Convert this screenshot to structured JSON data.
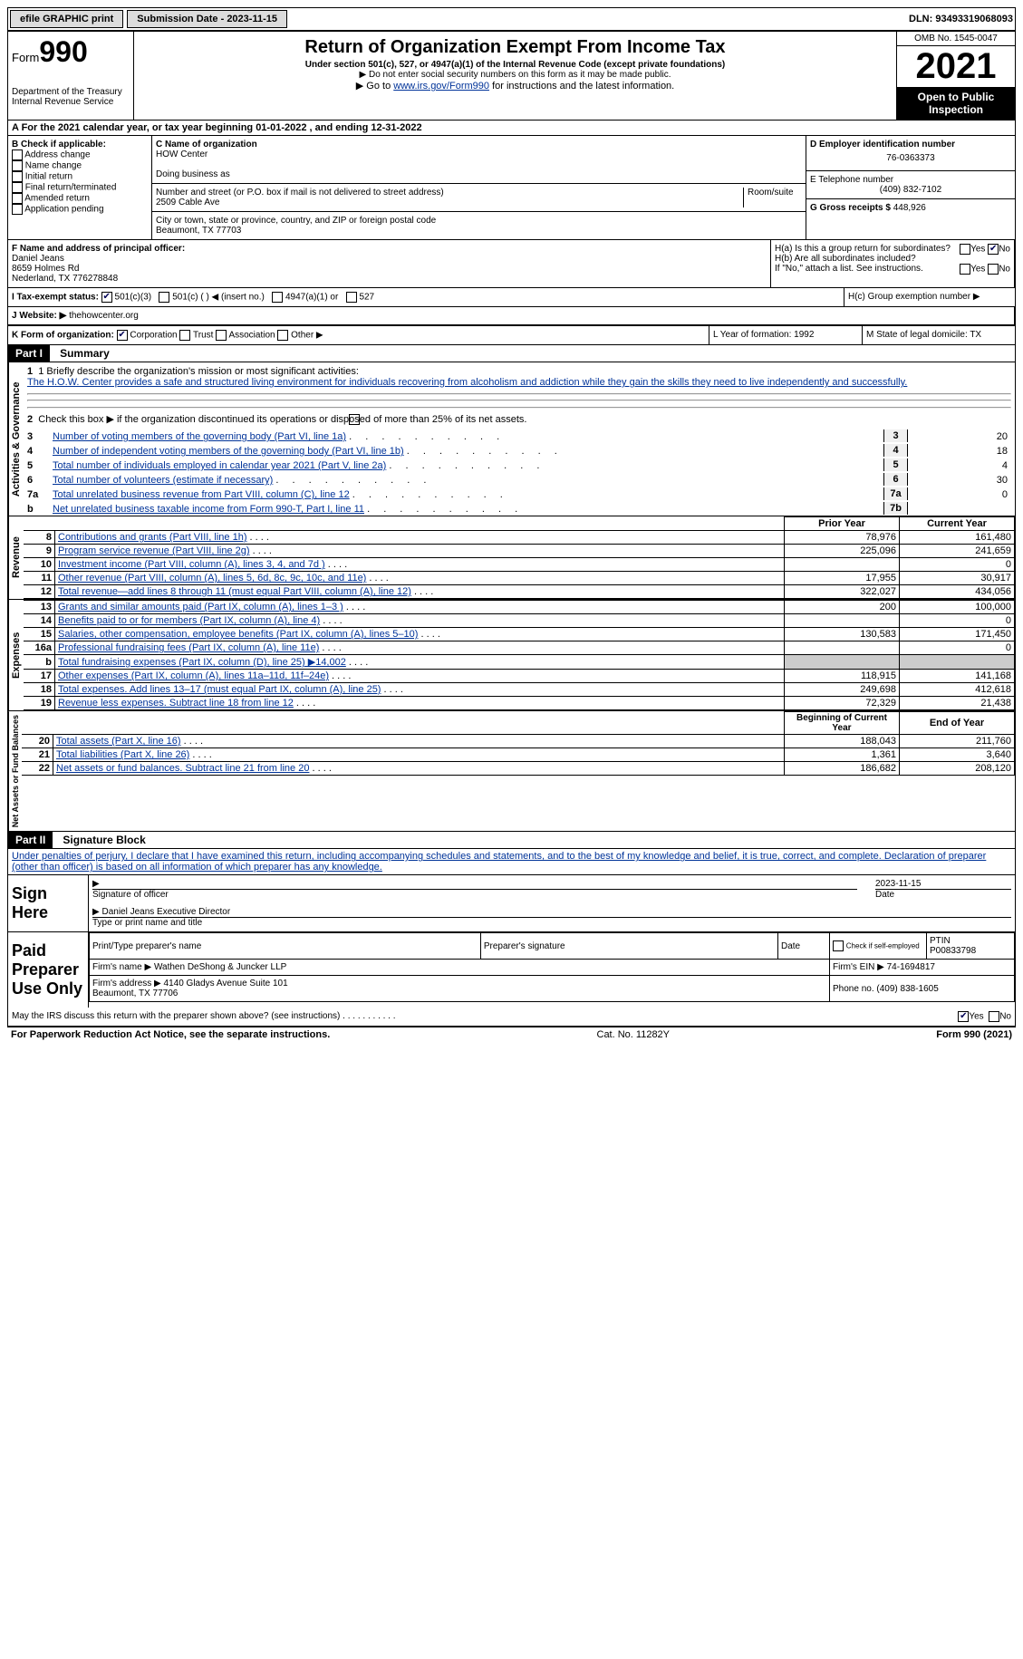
{
  "header": {
    "efile": "efile GRAPHIC print",
    "submission": "Submission Date - 2023-11-15",
    "dln": "DLN: 93493319068093"
  },
  "form": {
    "form_label": "Form",
    "form_number": "990",
    "dept": "Department of the Treasury Internal Revenue Service",
    "title": "Return of Organization Exempt From Income Tax",
    "subtitle": "Under section 501(c), 527, or 4947(a)(1) of the Internal Revenue Code (except private foundations)",
    "note1": "▶ Do not enter social security numbers on this form as it may be made public.",
    "note2_pre": "▶ Go to ",
    "note2_link": "www.irs.gov/Form990",
    "note2_post": " for instructions and the latest information.",
    "omb": "OMB No. 1545-0047",
    "year": "2021",
    "open": "Open to Public Inspection"
  },
  "calendar": "A For the 2021 calendar year, or tax year beginning 01-01-2022    , and ending 12-31-2022",
  "section_b": {
    "label": "B Check if applicable:",
    "items": [
      "Address change",
      "Name change",
      "Initial return",
      "Final return/terminated",
      "Amended return",
      "Application pending"
    ]
  },
  "section_c": {
    "name_label": "C Name of organization",
    "name": "HOW Center",
    "dba_label": "Doing business as",
    "street_label": "Number and street (or P.O. box if mail is not delivered to street address)",
    "room_label": "Room/suite",
    "street": "2509 Cable Ave",
    "city_label": "City or town, state or province, country, and ZIP or foreign postal code",
    "city": "Beaumont, TX  77703"
  },
  "section_d": {
    "ein_label": "D Employer identification number",
    "ein": "76-0363373",
    "phone_label": "E Telephone number",
    "phone": "(409) 832-7102",
    "gross_label": "G Gross receipts $",
    "gross": "448,926"
  },
  "section_f": {
    "label": "F Name and address of principal officer:",
    "name": "Daniel Jeans",
    "addr1": "8659 Holmes Rd",
    "addr2": "Nederland, TX  776278848"
  },
  "section_h": {
    "ha": "H(a)  Is this a group return for subordinates?",
    "hb": "H(b)  Are all subordinates included?",
    "hb_note": "If \"No,\" attach a list. See instructions.",
    "hc": "H(c)  Group exemption number ▶"
  },
  "tax_status": {
    "label": "I  Tax-exempt status:",
    "c3": "501(c)(3)",
    "c_other": "501(c) (  ) ◀ (insert no.)",
    "a1": "4947(a)(1) or",
    "s527": "527"
  },
  "website": {
    "label": "J Website: ▶",
    "value": "thehowcenter.org"
  },
  "section_k": {
    "label": "K Form of organization:",
    "corp": "Corporation",
    "trust": "Trust",
    "assoc": "Association",
    "other": "Other ▶"
  },
  "section_l": "L Year of formation: 1992",
  "section_m": "M State of legal domicile: TX",
  "part1": {
    "header": "Part I",
    "title": "Summary",
    "side_ag": "Activities & Governance",
    "side_rev": "Revenue",
    "side_exp": "Expenses",
    "side_net": "Net Assets or Fund Balances",
    "l1_label": "1  Briefly describe the organization's mission or most significant activities:",
    "l1_text": "The H.O.W. Center provides a safe and structured living environment for individuals recovering from alcoholism and addiction while they gain the skills they need to live independently and successfully.",
    "l2": "Check this box ▶     if the organization discontinued its operations or disposed of more than 25% of its net assets.",
    "lines_ag": [
      {
        "no": "3",
        "text": "Number of voting members of the governing body (Part VI, line 1a)",
        "box": "3",
        "val": "20"
      },
      {
        "no": "4",
        "text": "Number of independent voting members of the governing body (Part VI, line 1b)",
        "box": "4",
        "val": "18"
      },
      {
        "no": "5",
        "text": "Total number of individuals employed in calendar year 2021 (Part V, line 2a)",
        "box": "5",
        "val": "4"
      },
      {
        "no": "6",
        "text": "Total number of volunteers (estimate if necessary)",
        "box": "6",
        "val": "30"
      },
      {
        "no": "7a",
        "text": "Total unrelated business revenue from Part VIII, column (C), line 12",
        "box": "7a",
        "val": "0"
      },
      {
        "no": "b",
        "text": "Net unrelated business taxable income from Form 990-T, Part I, line 11",
        "box": "7b",
        "val": ""
      }
    ],
    "col_prior": "Prior Year",
    "col_current": "Current Year",
    "rows_rev": [
      {
        "no": "8",
        "text": "Contributions and grants (Part VIII, line 1h)",
        "prior": "78,976",
        "curr": "161,480"
      },
      {
        "no": "9",
        "text": "Program service revenue (Part VIII, line 2g)",
        "prior": "225,096",
        "curr": "241,659"
      },
      {
        "no": "10",
        "text": "Investment income (Part VIII, column (A), lines 3, 4, and 7d )",
        "prior": "",
        "curr": "0"
      },
      {
        "no": "11",
        "text": "Other revenue (Part VIII, column (A), lines 5, 6d, 8c, 9c, 10c, and 11e)",
        "prior": "17,955",
        "curr": "30,917"
      },
      {
        "no": "12",
        "text": "Total revenue—add lines 8 through 11 (must equal Part VIII, column (A), line 12)",
        "prior": "322,027",
        "curr": "434,056"
      }
    ],
    "rows_exp": [
      {
        "no": "13",
        "text": "Grants and similar amounts paid (Part IX, column (A), lines 1–3 )",
        "prior": "200",
        "curr": "100,000"
      },
      {
        "no": "14",
        "text": "Benefits paid to or for members (Part IX, column (A), line 4)",
        "prior": "",
        "curr": "0"
      },
      {
        "no": "15",
        "text": "Salaries, other compensation, employee benefits (Part IX, column (A), lines 5–10)",
        "prior": "130,583",
        "curr": "171,450"
      },
      {
        "no": "16a",
        "text": "Professional fundraising fees (Part IX, column (A), line 11e)",
        "prior": "",
        "curr": "0"
      },
      {
        "no": "b",
        "text": "Total fundraising expenses (Part IX, column (D), line 25) ▶14,002",
        "prior": "gray",
        "curr": "gray"
      },
      {
        "no": "17",
        "text": "Other expenses (Part IX, column (A), lines 11a–11d, 11f–24e)",
        "prior": "118,915",
        "curr": "141,168"
      },
      {
        "no": "18",
        "text": "Total expenses. Add lines 13–17 (must equal Part IX, column (A), line 25)",
        "prior": "249,698",
        "curr": "412,618"
      },
      {
        "no": "19",
        "text": "Revenue less expenses. Subtract line 18 from line 12",
        "prior": "72,329",
        "curr": "21,438"
      }
    ],
    "col_begin": "Beginning of Current Year",
    "col_end": "End of Year",
    "rows_net": [
      {
        "no": "20",
        "text": "Total assets (Part X, line 16)",
        "prior": "188,043",
        "curr": "211,760"
      },
      {
        "no": "21",
        "text": "Total liabilities (Part X, line 26)",
        "prior": "1,361",
        "curr": "3,640"
      },
      {
        "no": "22",
        "text": "Net assets or fund balances. Subtract line 21 from line 20",
        "prior": "186,682",
        "curr": "208,120"
      }
    ]
  },
  "part2": {
    "header": "Part II",
    "title": "Signature Block",
    "declaration": "Under penalties of perjury, I declare that I have examined this return, including accompanying schedules and statements, and to the best of my knowledge and belief, it is true, correct, and complete. Declaration of preparer (other than officer) is based on all information of which preparer has any knowledge.",
    "sign_here": "Sign Here",
    "sig_officer": "Signature of officer",
    "sig_date": "2023-11-15",
    "date_label": "Date",
    "officer_name": "Daniel Jeans  Executive Director",
    "type_name": "Type or print name and title",
    "paid": "Paid Preparer Use Only",
    "prep_name_label": "Print/Type preparer's name",
    "prep_sig_label": "Preparer's signature",
    "check_self": "Check        if self-employed",
    "ptin_label": "PTIN",
    "ptin": "P00833798",
    "firm_name_label": "Firm's name    ▶",
    "firm_name": "Wathen DeShong & Juncker LLP",
    "firm_ein_label": "Firm's EIN ▶",
    "firm_ein": "74-1694817",
    "firm_addr_label": "Firm's address ▶",
    "firm_addr": "4140 Gladys Avenue Suite 101\nBeaumont, TX  77706",
    "firm_phone_label": "Phone no.",
    "firm_phone": "(409) 838-1605",
    "discuss": "May the IRS discuss this return with the preparer shown above? (see instructions)",
    "yes": "Yes",
    "no": "No"
  },
  "footer": {
    "left": "For Paperwork Reduction Act Notice, see the separate instructions.",
    "mid": "Cat. No. 11282Y",
    "right": "Form 990 (2021)"
  }
}
